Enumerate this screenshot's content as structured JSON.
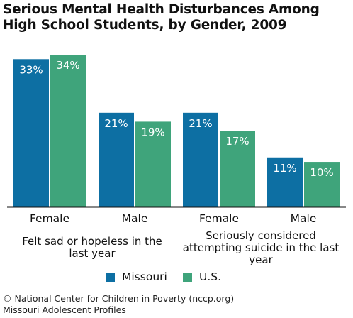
{
  "title": "Serious Mental Health Disturbances Among High School Students, by Gender, 2009",
  "chart_data": {
    "type": "bar",
    "title": "Serious Mental Health Disturbances Among High School Students, by Gender, 2009",
    "categories": [
      "Female",
      "Male",
      "Female",
      "Male"
    ],
    "groups": [
      {
        "label": "Felt sad or hopeless in the last year",
        "categories": [
          "Female",
          "Male"
        ]
      },
      {
        "label": "Seriously considered attempting suicide in the last year",
        "categories": [
          "Female",
          "Male"
        ]
      }
    ],
    "series": [
      {
        "name": "Missouri",
        "values": [
          33,
          21,
          21,
          11
        ],
        "labels": [
          "33%",
          "21%",
          "21%",
          "11%"
        ],
        "color": "#0d6fa3"
      },
      {
        "name": "U.S.",
        "values": [
          34,
          19,
          17,
          10
        ],
        "labels": [
          "34%",
          "19%",
          "17%",
          "10%"
        ],
        "color": "#3fa47b"
      }
    ],
    "ylim": [
      0,
      34
    ],
    "grid": false,
    "legend_position": "bottom"
  },
  "footer": {
    "line1": "© National Center for Children in Poverty (nccp.org)",
    "line2": "Missouri Adolescent Profiles"
  }
}
